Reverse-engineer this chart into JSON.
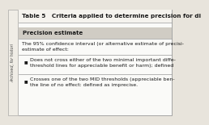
{
  "title": "Table 5   Criteria applied to determine precision for di",
  "title_fontsize": 5.2,
  "header_text": "Precision estimate",
  "body_intro_line1": "The 95% confidence interval (or alternative estimate of precisi-",
  "body_intro_line2": "estimate of effect:",
  "bullet1_line1": "Does not cross either of the two minimal important diffe-",
  "bullet1_line2": "threshold lines for appreciable benefit or harm); defined",
  "bullet2_line1": "Crosses one of the two MID thresholds (appreciable ben-",
  "bullet2_line2": "the line of no effect: defined as imprecise.",
  "outer_bg": "#e8e4dc",
  "table_bg": "#fafaf8",
  "header_bg": "#d0ccc4",
  "border_color": "#999999",
  "text_color": "#1a1a1a",
  "side_text": "Archived, for histori",
  "title_bg": "#f5f3ee",
  "fontsize_body": 4.5,
  "fontsize_header": 5.0
}
